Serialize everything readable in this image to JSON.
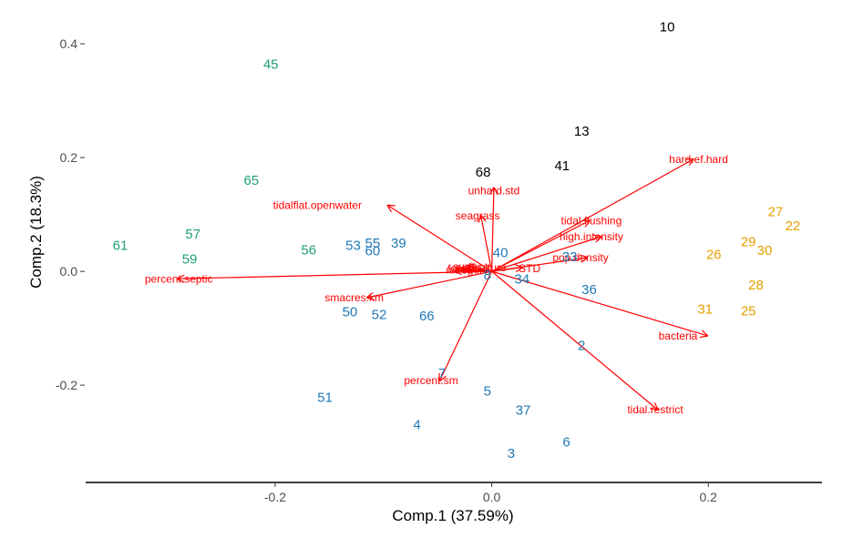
{
  "chart_data": {
    "type": "scatter",
    "subtype": "pca-biplot",
    "title": "",
    "xlabel": "Comp.1 (37.59%)",
    "ylabel": "Comp.2 (18.3%)",
    "xlim": [
      -0.375,
      0.305
    ],
    "ylim": [
      -0.355,
      0.445
    ],
    "x_ticks": [
      {
        "value": -0.2,
        "label": "-0.2"
      },
      {
        "value": 0.0,
        "label": "0.0"
      },
      {
        "value": 0.2,
        "label": "0.2"
      }
    ],
    "y_ticks": [
      {
        "value": -0.2,
        "label": "-0.2"
      },
      {
        "value": 0.0,
        "label": "0.0"
      },
      {
        "value": 0.2,
        "label": "0.2"
      },
      {
        "value": 0.4,
        "label": "0.4"
      }
    ],
    "grid": false,
    "colors": {
      "cluster_1": "#1f9e77",
      "cluster_2": "#1f78b4",
      "cluster_3": "#e69f00",
      "cluster_4": "#000000",
      "loadings": "#ff0000"
    },
    "points": [
      {
        "label": "10",
        "x": 0.162,
        "y": 0.43,
        "group": "cluster_4"
      },
      {
        "label": "13",
        "x": 0.083,
        "y": 0.247,
        "group": "cluster_4"
      },
      {
        "label": "41",
        "x": 0.065,
        "y": 0.186,
        "group": "cluster_4"
      },
      {
        "label": "68",
        "x": -0.008,
        "y": 0.175,
        "group": "cluster_4"
      },
      {
        "label": "45",
        "x": -0.204,
        "y": 0.364,
        "group": "cluster_1"
      },
      {
        "label": "65",
        "x": -0.222,
        "y": 0.16,
        "group": "cluster_1"
      },
      {
        "label": "61",
        "x": -0.343,
        "y": 0.046,
        "group": "cluster_1"
      },
      {
        "label": "57",
        "x": -0.276,
        "y": 0.066,
        "group": "cluster_1"
      },
      {
        "label": "59",
        "x": -0.279,
        "y": 0.022,
        "group": "cluster_1"
      },
      {
        "label": "56",
        "x": -0.169,
        "y": 0.038,
        "group": "cluster_1"
      },
      {
        "label": "53",
        "x": -0.128,
        "y": 0.046,
        "group": "cluster_2"
      },
      {
        "label": "55",
        "x": -0.11,
        "y": 0.05,
        "group": "cluster_2"
      },
      {
        "label": "39",
        "x": -0.086,
        "y": 0.05,
        "group": "cluster_2"
      },
      {
        "label": "60",
        "x": -0.11,
        "y": 0.036,
        "group": "cluster_2"
      },
      {
        "label": "40",
        "x": 0.008,
        "y": 0.033,
        "group": "cluster_2"
      },
      {
        "label": "33",
        "x": 0.072,
        "y": 0.026,
        "group": "cluster_2"
      },
      {
        "label": "34",
        "x": 0.028,
        "y": -0.013,
        "group": "cluster_2"
      },
      {
        "label": "8",
        "x": -0.004,
        "y": -0.006,
        "group": "cluster_2"
      },
      {
        "label": "36",
        "x": 0.09,
        "y": -0.032,
        "group": "cluster_2"
      },
      {
        "label": "50",
        "x": -0.131,
        "y": -0.071,
        "group": "cluster_2"
      },
      {
        "label": "52",
        "x": -0.104,
        "y": -0.076,
        "group": "cluster_2"
      },
      {
        "label": "66",
        "x": -0.06,
        "y": -0.078,
        "group": "cluster_2"
      },
      {
        "label": "2",
        "x": 0.083,
        "y": -0.13,
        "group": "cluster_2"
      },
      {
        "label": "7",
        "x": -0.046,
        "y": -0.179,
        "group": "cluster_2"
      },
      {
        "label": "5",
        "x": -0.004,
        "y": -0.21,
        "group": "cluster_2"
      },
      {
        "label": "51",
        "x": -0.154,
        "y": -0.221,
        "group": "cluster_2"
      },
      {
        "label": "37",
        "x": 0.029,
        "y": -0.244,
        "group": "cluster_2"
      },
      {
        "label": "4",
        "x": -0.069,
        "y": -0.269,
        "group": "cluster_2"
      },
      {
        "label": "6",
        "x": 0.069,
        "y": -0.3,
        "group": "cluster_2"
      },
      {
        "label": "3",
        "x": 0.018,
        "y": -0.32,
        "group": "cluster_2"
      },
      {
        "label": "27",
        "x": 0.262,
        "y": 0.105,
        "group": "cluster_3"
      },
      {
        "label": "22",
        "x": 0.278,
        "y": 0.08,
        "group": "cluster_3"
      },
      {
        "label": "29",
        "x": 0.237,
        "y": 0.052,
        "group": "cluster_3"
      },
      {
        "label": "30",
        "x": 0.252,
        "y": 0.037,
        "group": "cluster_3"
      },
      {
        "label": "26",
        "x": 0.205,
        "y": 0.03,
        "group": "cluster_3"
      },
      {
        "label": "28",
        "x": 0.244,
        "y": -0.024,
        "group": "cluster_3"
      },
      {
        "label": "31",
        "x": 0.197,
        "y": -0.066,
        "group": "cluster_3"
      },
      {
        "label": "25",
        "x": 0.237,
        "y": -0.069,
        "group": "cluster_3"
      }
    ],
    "loadings": [
      {
        "label": "hard.ef.hard",
        "end": [
          0.186,
          0.197
        ],
        "label_at": [
          0.191,
          0.197
        ]
      },
      {
        "label": "unhard.std",
        "end": [
          0.002,
          0.147
        ],
        "label_at": [
          0.002,
          0.142
        ]
      },
      {
        "label": "tidalflat.openwater",
        "end": [
          -0.096,
          0.116
        ],
        "label_at": [
          -0.161,
          0.116
        ]
      },
      {
        "label": "seagrass",
        "end": [
          -0.01,
          0.098
        ],
        "label_at": [
          -0.013,
          0.098
        ]
      },
      {
        "label": "tidal.flushing",
        "end": [
          0.09,
          0.089
        ],
        "label_at": [
          0.092,
          0.089
        ]
      },
      {
        "label": "high.intensity",
        "end": [
          0.101,
          0.061
        ],
        "label_at": [
          0.092,
          0.061
        ]
      },
      {
        "label": "pop.density",
        "end": [
          0.088,
          0.024
        ],
        "label_at": [
          0.082,
          0.024
        ]
      },
      {
        "label": "STD",
        "end": [
          0.028,
          0.007
        ],
        "label_at": [
          0.035,
          0.005
        ]
      },
      {
        "label": "percent.septic",
        "end": [
          -0.29,
          -0.013
        ],
        "label_at": [
          -0.289,
          -0.013
        ]
      },
      {
        "label": "smacres.km",
        "end": [
          -0.115,
          -0.046
        ],
        "label_at": [
          -0.127,
          -0.046
        ]
      },
      {
        "label": "bacteria",
        "end": [
          0.199,
          -0.113
        ],
        "label_at": [
          0.172,
          -0.113
        ]
      },
      {
        "label": "percent.sm",
        "end": [
          -0.048,
          -0.192
        ],
        "label_at": [
          -0.056,
          -0.192
        ]
      },
      {
        "label": "tidal.restrict",
        "end": [
          0.153,
          -0.243
        ],
        "label_at": [
          0.151,
          -0.243
        ]
      },
      {
        "label": "surface",
        "end": [
          -0.022,
          0.01
        ],
        "label_at": [
          -0.019,
          0.008
        ]
      },
      {
        "label": "agriculture",
        "end": [
          -0.024,
          0.005
        ],
        "label_at": [
          -0.01,
          0.007
        ]
      },
      {
        "label": "forest",
        "end": [
          -0.034,
          0.001
        ],
        "label_at": [
          -0.028,
          0.005
        ]
      },
      {
        "label": "nitrogen",
        "end": [
          -0.026,
          0.003
        ],
        "label_at": [
          -0.024,
          0.003
        ]
      }
    ]
  }
}
